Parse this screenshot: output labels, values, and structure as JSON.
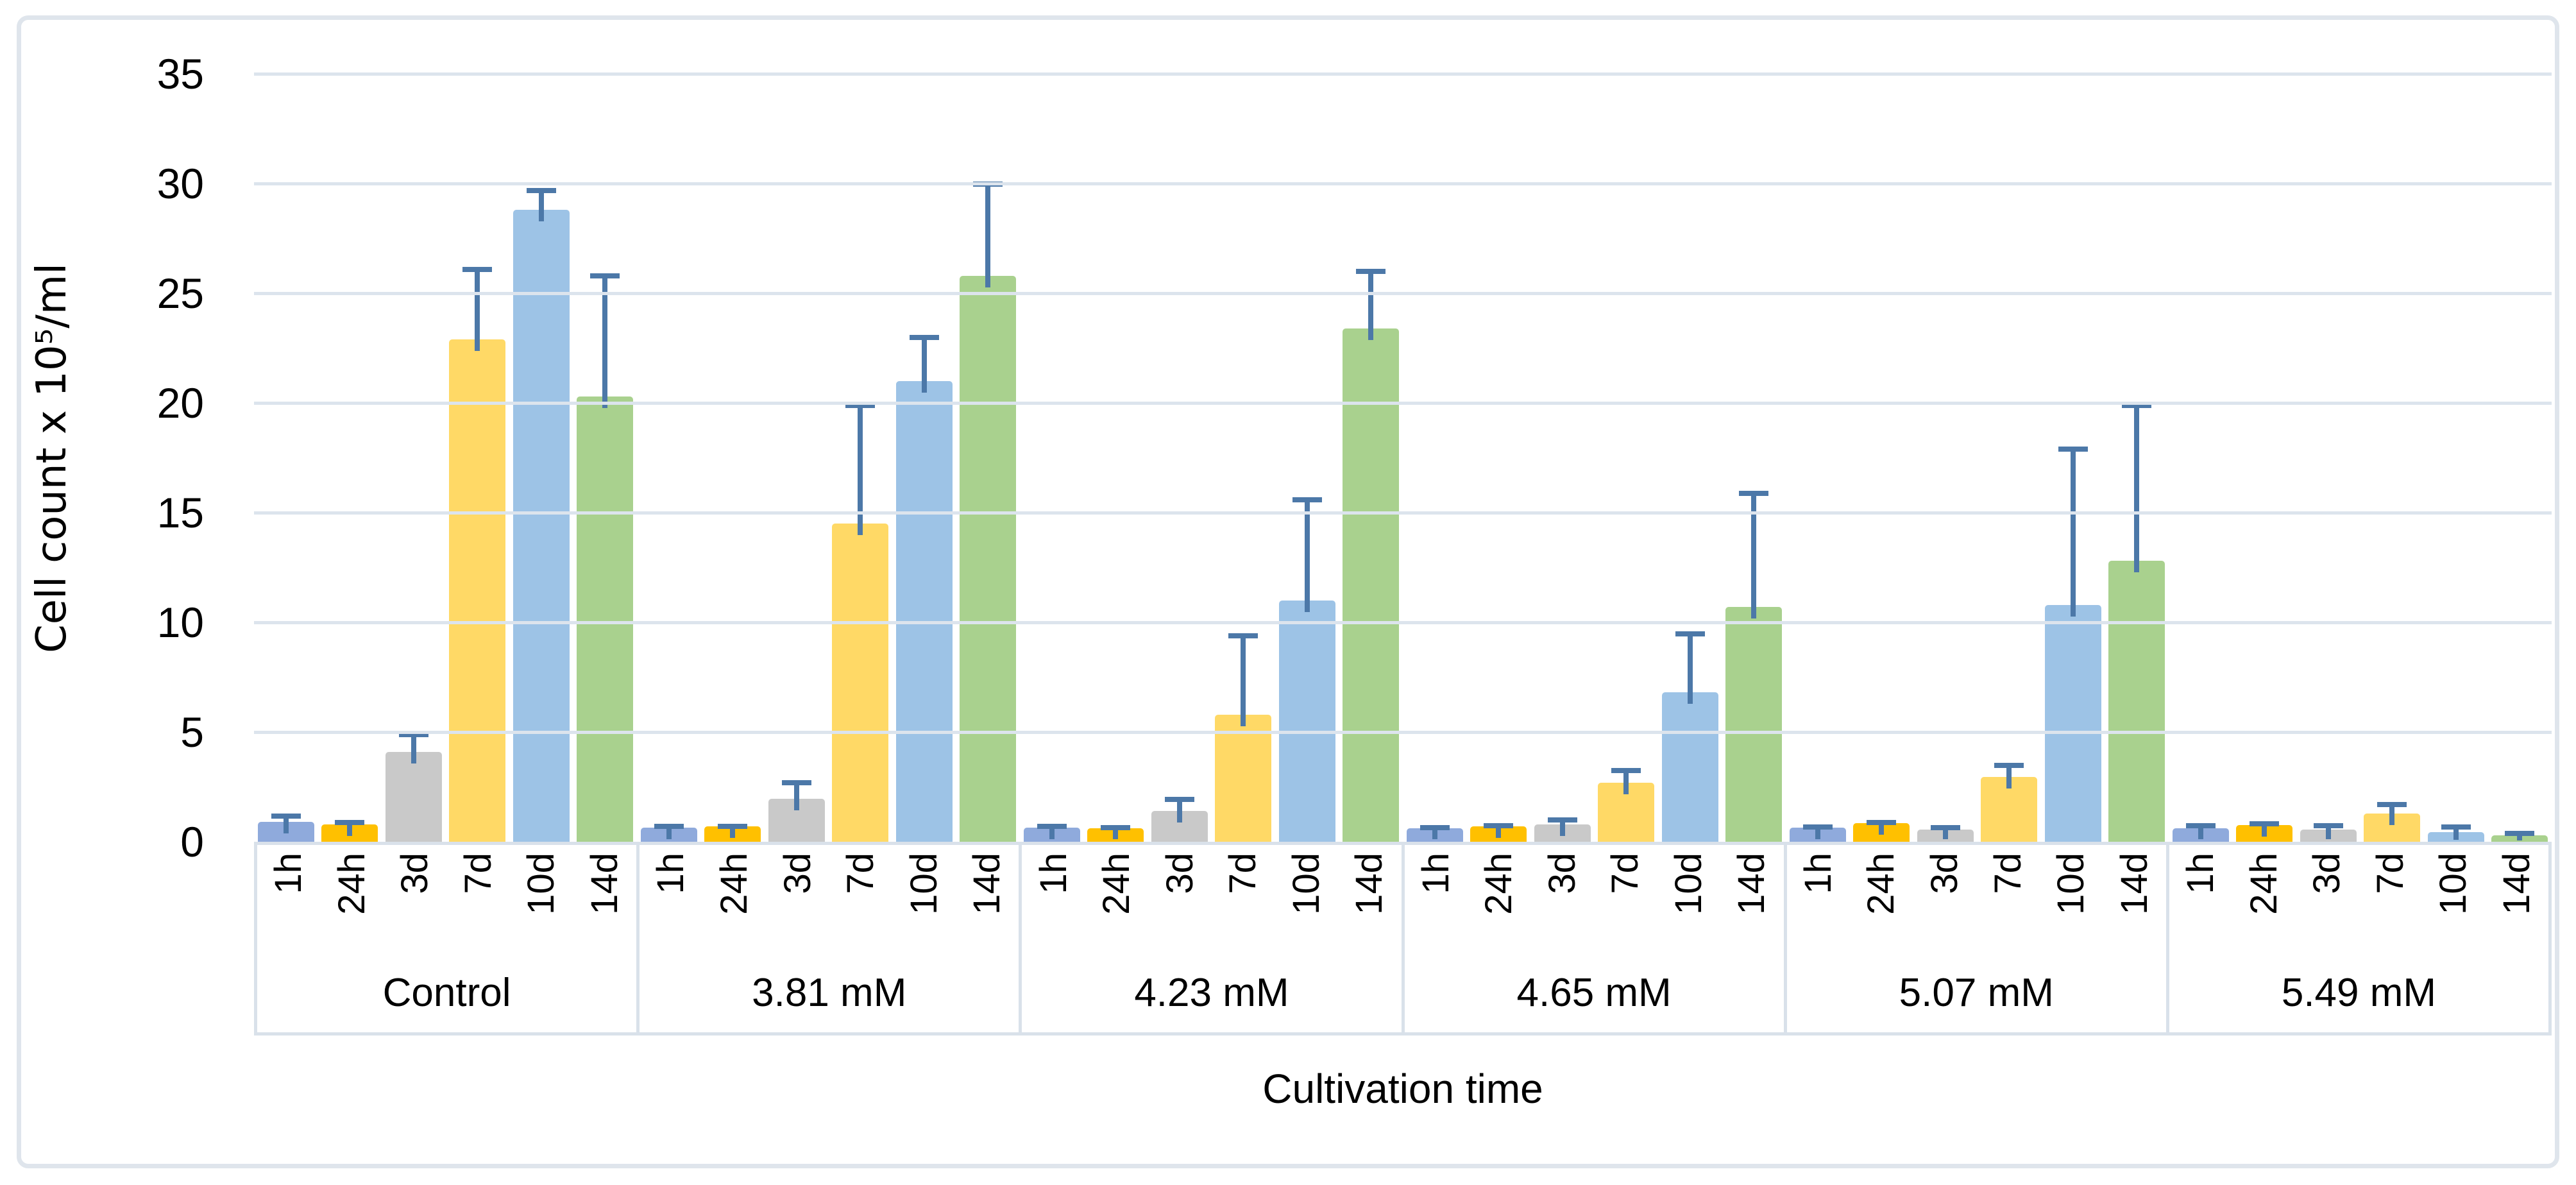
{
  "figure": {
    "background": "#FFFFFF",
    "frame_border_color": "#DFE5EC",
    "gridline_color": "#DCE4ED",
    "axis_box_border_color": "#D9E1EA"
  },
  "chart_data": {
    "type": "bar",
    "title": "",
    "ylabel": "Cell count x 10⁵/ml",
    "xlabel": "Cultivation time",
    "ylim": [
      0,
      35
    ],
    "ytick_step": 5,
    "grid": "horizontal",
    "legend_position": "none",
    "error_bars": "plus-direction with caps",
    "error_bar_color": "#4C78A8",
    "series_labels": [
      "1h",
      "24h",
      "3d",
      "7d",
      "10d",
      "14d"
    ],
    "series_colors": [
      "#8FAADC",
      "#FFC000",
      "#C9C9C9",
      "#FFD966",
      "#9DC3E6",
      "#A9D18E"
    ],
    "groups": [
      {
        "label": "Control",
        "values": [
          0.9,
          0.8,
          4.1,
          22.9,
          28.8,
          20.3
        ],
        "errors": [
          0.4,
          0.2,
          0.9,
          3.3,
          1.0,
          5.6
        ]
      },
      {
        "label": "3.81 mM",
        "values": [
          0.65,
          0.7,
          1.95,
          14.5,
          21.0,
          25.8
        ],
        "errors": [
          0.17,
          0.12,
          0.85,
          5.5,
          2.1,
          4.3
        ]
      },
      {
        "label": "4.23 mM",
        "values": [
          0.65,
          0.6,
          1.4,
          5.8,
          11.0,
          23.4
        ],
        "errors": [
          0.17,
          0.15,
          0.65,
          3.7,
          4.7,
          2.7
        ]
      },
      {
        "label": "4.65 mM",
        "values": [
          0.6,
          0.7,
          0.8,
          2.7,
          6.8,
          10.7
        ],
        "errors": [
          0.17,
          0.15,
          0.3,
          0.65,
          2.8,
          5.3
        ]
      },
      {
        "label": "5.07 mM",
        "values": [
          0.65,
          0.85,
          0.55,
          2.95,
          10.8,
          12.8
        ],
        "errors": [
          0.15,
          0.15,
          0.2,
          0.65,
          7.2,
          7.2
        ]
      },
      {
        "label": "5.49 mM",
        "values": [
          0.6,
          0.75,
          0.55,
          1.3,
          0.45,
          0.3
        ],
        "errors": [
          0.25,
          0.2,
          0.3,
          0.5,
          0.35,
          0.2
        ]
      }
    ]
  }
}
